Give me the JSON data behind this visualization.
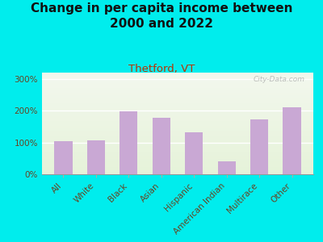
{
  "title": "Change in per capita income between\n2000 and 2022",
  "subtitle": "Thetford, VT",
  "watermark": "City-Data.com",
  "categories": [
    "All",
    "White",
    "Black",
    "Asian",
    "Hispanic",
    "American Indian",
    "Multirace",
    "Other"
  ],
  "values": [
    105,
    107,
    197,
    178,
    133,
    40,
    172,
    210
  ],
  "bar_color": "#c9a8d4",
  "background_outer": "#00eded",
  "title_color": "#111111",
  "subtitle_color": "#bb3300",
  "tick_label_color": "#664422",
  "ylabel_ticks": [
    0,
    100,
    200,
    300
  ],
  "ylim": [
    0,
    320
  ],
  "title_fontsize": 11,
  "subtitle_fontsize": 9.5,
  "tick_fontsize": 7.5,
  "watermark_color": "#aaaaaa"
}
